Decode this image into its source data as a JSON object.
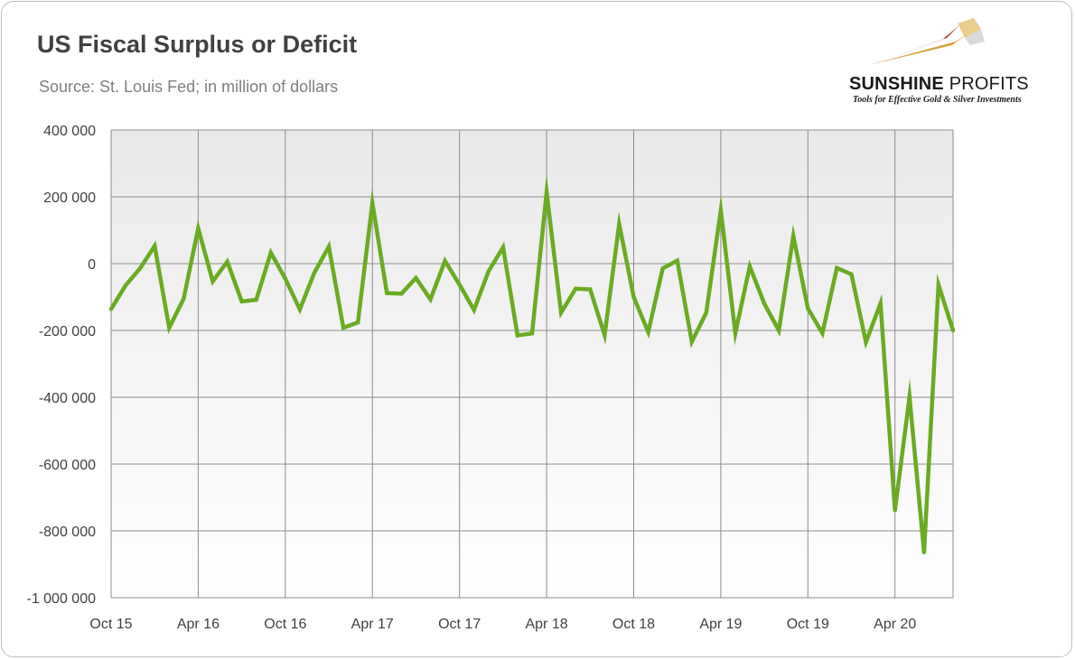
{
  "title": "US Fiscal Surplus or Deficit",
  "subtitle": "Source: St. Louis Fed; in million of dollars",
  "logo": {
    "name_bold": "SUNSHINE",
    "name_light": "PROFITS",
    "tagline": "Tools for Effective Gold & Silver Investments"
  },
  "colors": {
    "line": "#6aab23",
    "plot_background_top": "#e9e9e9",
    "plot_background_bottom": "#ffffff",
    "grid": "#8c8c8c",
    "logo_red": "#b42a26",
    "logo_gold": "#d4a23a"
  },
  "chart_data": {
    "type": "line",
    "grid": true,
    "ylim": [
      -1000000,
      400000
    ],
    "yticks": [
      400000,
      200000,
      0,
      -200000,
      -400000,
      -600000,
      -800000,
      -1000000
    ],
    "ytick_labels": [
      "400 000",
      "200 000",
      "0",
      "-200 000",
      "-400 000",
      "-600 000",
      "-800 000",
      "-1 000 000"
    ],
    "xtick_labels": [
      "Oct 15",
      "Apr 16",
      "Oct 16",
      "Apr 17",
      "Oct 17",
      "Apr 18",
      "Oct 18",
      "Apr 19",
      "Oct 19",
      "Apr 20"
    ],
    "x_start": "2015-10",
    "x_end": "2020-09",
    "series": [
      {
        "values": [
          -136000,
          -65000,
          -14000,
          53000,
          -192000,
          -105000,
          106000,
          -53000,
          6000,
          -113000,
          -108000,
          33000,
          -45000,
          -137000,
          -27000,
          51000,
          -192000,
          -176000,
          182000,
          -88000,
          -90000,
          -43000,
          -107000,
          8000,
          -63000,
          -139000,
          -23000,
          49000,
          -215000,
          -209000,
          214000,
          -147000,
          -75000,
          -77000,
          -214000,
          119000,
          -100000,
          -205000,
          -14000,
          9000,
          -234000,
          -147000,
          160000,
          -208000,
          -8000,
          -120000,
          -200000,
          83000,
          -134000,
          -208000,
          -13000,
          -32000,
          -235000,
          -119000,
          -738000,
          -399000,
          -864000,
          -63000,
          -200000
        ]
      }
    ]
  }
}
